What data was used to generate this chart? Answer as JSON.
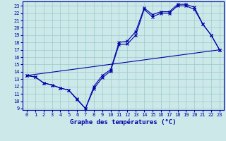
{
  "title": "Graphe des températures (°C)",
  "xlim": [
    -0.5,
    23.5
  ],
  "ylim": [
    8.8,
    23.6
  ],
  "yticks": [
    9,
    10,
    11,
    12,
    13,
    14,
    15,
    16,
    17,
    18,
    19,
    20,
    21,
    22,
    23
  ],
  "xticks": [
    0,
    1,
    2,
    3,
    4,
    5,
    6,
    7,
    8,
    9,
    10,
    11,
    12,
    13,
    14,
    15,
    16,
    17,
    18,
    19,
    20,
    21,
    22,
    23
  ],
  "background_color": "#cce8e8",
  "grid_color": "#99cccc",
  "line_color": "#0000aa",
  "curve1_x": [
    0,
    1,
    2,
    3,
    4,
    5,
    6,
    7,
    8,
    9,
    10,
    11,
    12,
    13,
    14,
    15,
    16,
    17,
    18,
    19,
    20,
    21,
    22,
    23
  ],
  "curve1_y": [
    13.5,
    13.3,
    12.5,
    12.2,
    11.8,
    11.5,
    10.3,
    9.0,
    11.7,
    13.2,
    14.1,
    17.7,
    17.8,
    19.0,
    22.5,
    21.5,
    22.0,
    22.0,
    23.0,
    23.0,
    22.5,
    20.5,
    19.0,
    17.0
  ],
  "curve2_x": [
    0,
    1,
    2,
    3,
    4,
    5,
    6,
    7,
    8,
    9,
    10,
    11,
    12,
    13,
    14,
    15,
    16,
    17,
    18,
    19,
    20,
    21,
    22,
    23
  ],
  "curve2_y": [
    13.5,
    13.3,
    12.5,
    12.2,
    11.8,
    11.5,
    10.2,
    9.0,
    12.0,
    13.5,
    14.3,
    18.0,
    18.2,
    19.5,
    22.7,
    21.8,
    22.2,
    22.2,
    23.2,
    23.2,
    22.8,
    20.5,
    19.0,
    17.0
  ],
  "trend_x": [
    0,
    23
  ],
  "trend_y": [
    13.5,
    17.0
  ],
  "xlabel_fontsize": 6.5,
  "tick_fontsize": 5.0,
  "label_color": "#0000aa",
  "spine_color": "#0000aa"
}
